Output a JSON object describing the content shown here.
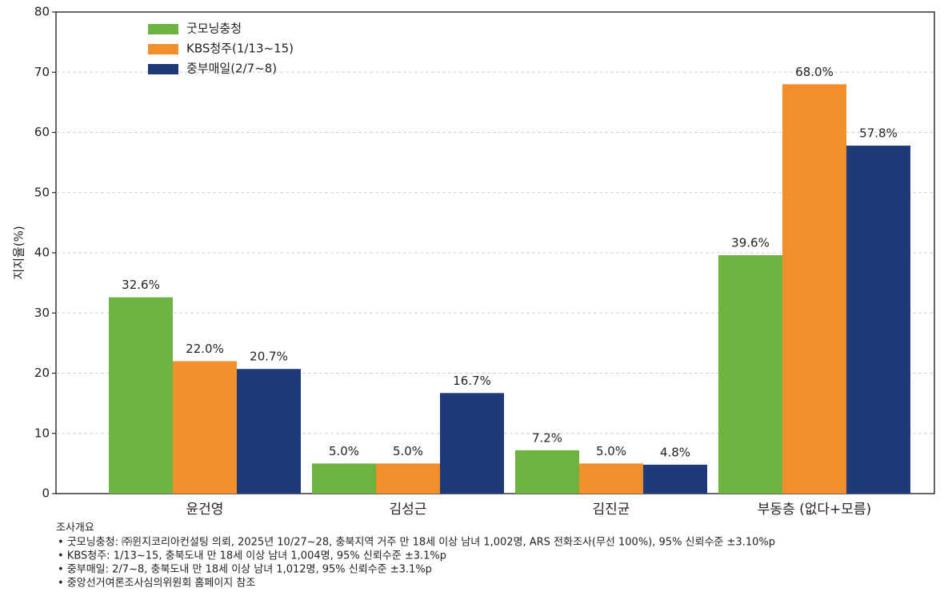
{
  "chart_data": {
    "type": "bar",
    "y_label": "지지율(%)",
    "categories": [
      "윤건영",
      "김성근",
      "김진균",
      "부동층 (없다+모름)"
    ],
    "series": [
      {
        "name": "굿모닝충청",
        "color": "#6db33f",
        "values": [
          32.6,
          5.0,
          7.2,
          39.6
        ],
        "value_labels": [
          "32.6%",
          "5.0%",
          "7.2%",
          "39.6%"
        ]
      },
      {
        "name": "KBS청주(1/13~15)",
        "color": "#f28e2b",
        "values": [
          22.0,
          5.0,
          5.0,
          68.0
        ],
        "value_labels": [
          "22.0%",
          "5.0%",
          "5.0%",
          "68.0%"
        ]
      },
      {
        "name": "중부매일(2/7~8)",
        "color": "#1f3a78",
        "values": [
          20.7,
          16.7,
          4.8,
          57.8
        ],
        "value_labels": [
          "20.7%",
          "16.7%",
          "4.8%",
          "57.8%"
        ]
      }
    ],
    "ylim": [
      0,
      80
    ],
    "yticks": [
      0,
      10,
      20,
      30,
      40,
      50,
      60,
      70,
      80
    ],
    "grid": true,
    "legend": "upper-left"
  },
  "notes": {
    "title": "조사개요",
    "items": [
      "• 굿모닝충청: ㈜윈지코리아컨설팅 의뢰, 2025년 10/27~28, 충북지역 거주 만 18세 이상 남녀 1,002명, ARS 전화조사(무선 100%), 95% 신뢰수준 ±3.10%p",
      "• KBS청주: 1/13~15, 충북도내 만 18세 이상 남녀 1,004명, 95% 신뢰수준 ±3.1%p",
      "• 중부매일: 2/7~8, 충북도내 만 18세 이상 남녀 1,012명, 95% 신뢰수준 ±3.1%p",
      "• 중앙선거여론조사심의위원회 홈페이지 참조"
    ]
  }
}
